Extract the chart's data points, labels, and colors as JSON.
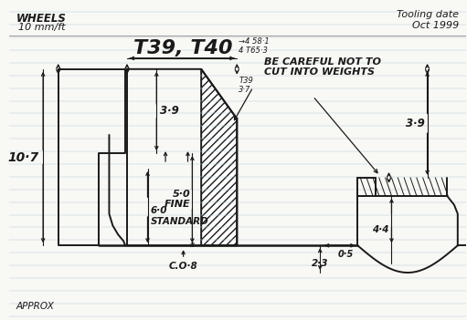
{
  "bg": "#f8f8f5",
  "lc": "#1a1a1a",
  "line_blue": "#b8ccd8",
  "title": "T39, T40",
  "tl1": "WHEELS",
  "tl2": "10 mm/ft",
  "tr1": "Tooling date",
  "tr2": "Oct 1999",
  "bot": "APPROX",
  "note": "BE CAREFUL NOT TO\nCUT INTO WEIGHTS",
  "d107": "10·7",
  "d39l": "3·9",
  "d39r": "3·9",
  "d50": "5·0\nFINE",
  "d60": "6·0\nSTANDARD",
  "d58": "→4 58·1\n4 T65·3",
  "dt39": "T39\n3·7",
  "d44": "4·4",
  "d05": "0·5",
  "d23": "2·3",
  "dc08": "C.O·8"
}
